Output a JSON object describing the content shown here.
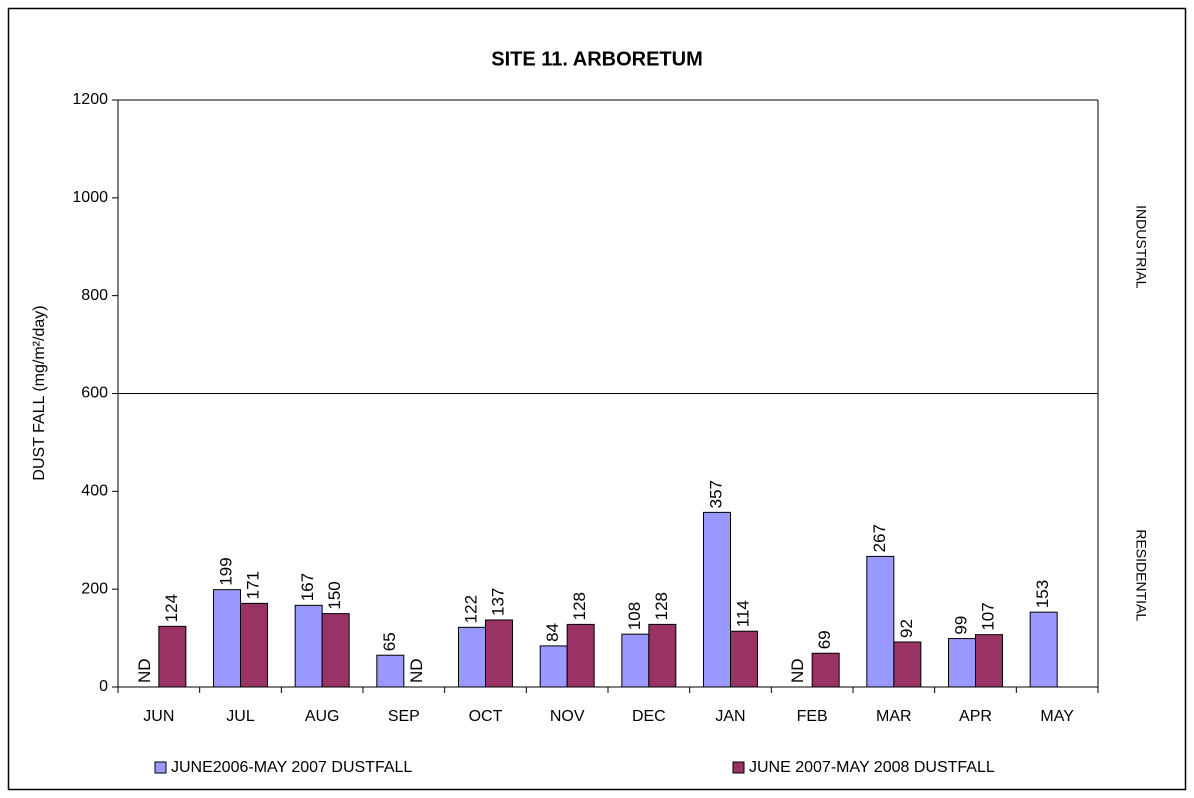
{
  "chart_data": {
    "type": "bar",
    "title": "SITE 11. ARBORETUM",
    "y_label": "DUST FALL  (mg/m²/day)",
    "categories": [
      "JUN",
      "JUL",
      "AUG",
      "SEP",
      "OCT",
      "NOV",
      "DEC",
      "JAN",
      "FEB",
      "MAR",
      "APR",
      "MAY"
    ],
    "series": [
      {
        "name": "JUNE2006-MAY 2007 DUSTFALL",
        "color": "#9999ff",
        "values": [
          null,
          199,
          167,
          65,
          122,
          84,
          108,
          357,
          null,
          267,
          99,
          153
        ],
        "value_labels": [
          "ND",
          null,
          null,
          null,
          null,
          null,
          null,
          null,
          "ND",
          null,
          null,
          null
        ]
      },
      {
        "name": "JUNE 2007-MAY 2008 DUSTFALL",
        "color": "#993366",
        "values": [
          124,
          171,
          150,
          null,
          137,
          128,
          128,
          114,
          69,
          92,
          107,
          null
        ],
        "value_labels": [
          null,
          null,
          null,
          "ND",
          null,
          null,
          null,
          null,
          null,
          null,
          null,
          null
        ]
      }
    ],
    "ylim": [
      0,
      1200
    ],
    "yticks": [
      0,
      200,
      400,
      600,
      800,
      1000,
      1200
    ],
    "threshold": 600,
    "zone_labels": [
      "INDUSTRIAL",
      "RESIDENTIAL"
    ],
    "grid": false
  }
}
